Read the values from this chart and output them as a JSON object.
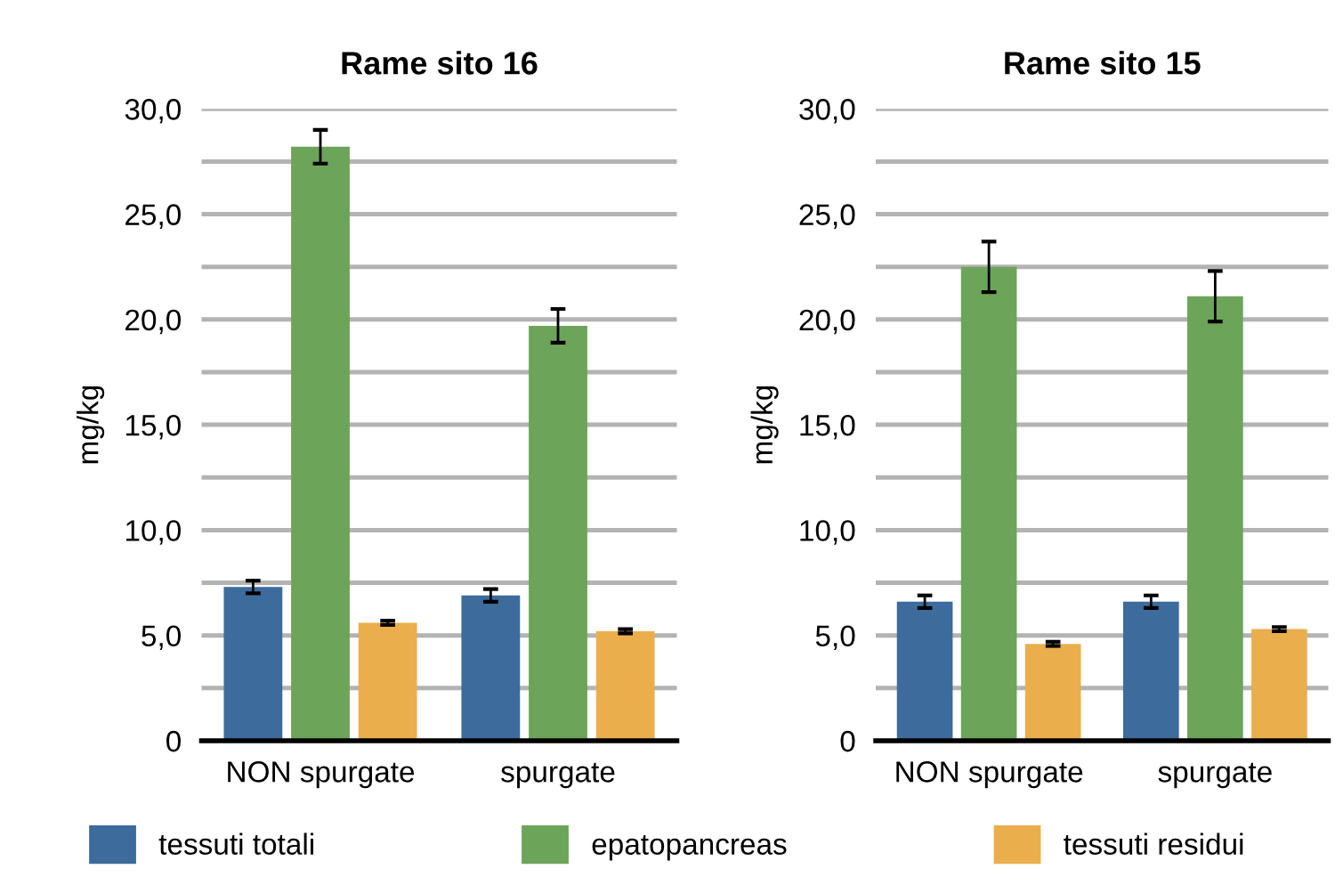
{
  "chart_data": [
    {
      "type": "bar",
      "title": "Rame sito 16",
      "ylabel": "mg/kg",
      "categories": [
        "NON spurgate",
        "spurgate"
      ],
      "series": [
        {
          "name": "tessuti totali",
          "color": "#3d6b9c",
          "values": [
            7.3,
            6.9
          ],
          "errors": [
            0.3,
            0.3
          ]
        },
        {
          "name": "epatopancreas",
          "color": "#6ca45a",
          "values": [
            28.2,
            19.7
          ],
          "errors": [
            0.8,
            0.8
          ]
        },
        {
          "name": "tessuti residui",
          "color": "#ebae4c",
          "values": [
            5.6,
            5.2
          ],
          "errors": [
            0.1,
            0.1
          ]
        }
      ],
      "ylim": [
        0,
        30
      ],
      "yticks": [
        {
          "value": 0,
          "label": "0"
        },
        {
          "value": 2.5,
          "label": null
        },
        {
          "value": 5,
          "label": "5,0"
        },
        {
          "value": 7.5,
          "label": null
        },
        {
          "value": 10,
          "label": "10,0"
        },
        {
          "value": 12.5,
          "label": null
        },
        {
          "value": 15,
          "label": "15,0"
        },
        {
          "value": 17.5,
          "label": null
        },
        {
          "value": 20,
          "label": "20,0"
        },
        {
          "value": 22.5,
          "label": null
        },
        {
          "value": 25,
          "label": "25,0"
        },
        {
          "value": 27.5,
          "label": null
        },
        {
          "value": 30,
          "label": "30,0"
        }
      ],
      "grid": "y",
      "legend": "bottom"
    },
    {
      "type": "bar",
      "title": "Rame sito 15",
      "ylabel": "mg/kg",
      "categories": [
        "NON spurgate",
        "spurgate"
      ],
      "series": [
        {
          "color": "#3d6b9c",
          "values": [
            6.6,
            6.6
          ],
          "errors": [
            0.3,
            0.3
          ]
        },
        {
          "color": "#6ca45a",
          "values": [
            22.5,
            21.1
          ],
          "errors": [
            1.2,
            1.2
          ]
        },
        {
          "color": "#ebae4c",
          "values": [
            4.6,
            5.3
          ],
          "errors": [
            0.1,
            0.1
          ]
        }
      ],
      "ylim": [
        0,
        30
      ],
      "yticks": [
        {
          "value": 0,
          "label": "0"
        },
        {
          "value": 2.5,
          "label": null
        },
        {
          "value": 5,
          "label": "5,0"
        },
        {
          "value": 7.5,
          "label": null
        },
        {
          "value": 10,
          "label": "10,0"
        },
        {
          "value": 12.5,
          "label": null
        },
        {
          "value": 15,
          "label": "15,0"
        },
        {
          "value": 17.5,
          "label": null
        },
        {
          "value": 20,
          "label": "20,0"
        },
        {
          "value": 22.5,
          "label": null
        },
        {
          "value": 25,
          "label": "25,0"
        },
        {
          "value": 27.5,
          "label": null
        },
        {
          "value": 30,
          "label": "30,0"
        }
      ],
      "grid": "y",
      "legend": false
    }
  ]
}
